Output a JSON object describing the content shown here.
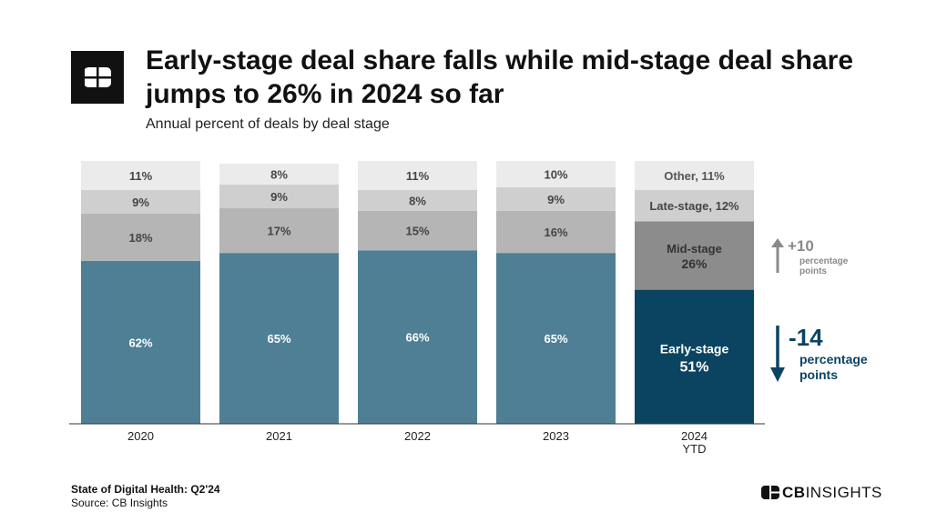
{
  "title": "Early-stage deal share falls while mid-stage deal share jumps to 26% in 2024 so far",
  "subtitle": "Annual percent of deals by deal stage",
  "colors": {
    "early": "#4e7f94",
    "early_highlight": "#0b4461",
    "mid": "#b5b5b5",
    "mid_highlight": "#8c8c8c",
    "late": "#cfcfcf",
    "other": "#ebebeb",
    "up_arrow": "#8a8a8a",
    "down_arrow": "#0b4461"
  },
  "chart_data": {
    "type": "bar",
    "stacked": true,
    "normalized": true,
    "title": "Early-stage deal share falls while mid-stage deal share jumps to 26% in 2024 so far",
    "subtitle": "Annual percent of deals by deal stage",
    "categories": [
      "2020",
      "2021",
      "2022",
      "2023",
      "2024 YTD"
    ],
    "series": [
      {
        "name": "Early-stage",
        "values": [
          62,
          65,
          66,
          65,
          51
        ]
      },
      {
        "name": "Mid-stage",
        "values": [
          18,
          17,
          15,
          16,
          26
        ]
      },
      {
        "name": "Late-stage",
        "values": [
          9,
          9,
          8,
          9,
          12
        ]
      },
      {
        "name": "Other",
        "values": [
          11,
          8,
          11,
          10,
          11
        ]
      }
    ],
    "ylim": [
      0,
      100
    ],
    "xlabel": "",
    "ylabel": "",
    "annotations": [
      {
        "series": "Mid-stage",
        "direction": "up",
        "value": "+10",
        "unit": "percentage points"
      },
      {
        "series": "Early-stage",
        "direction": "down",
        "value": "-14",
        "unit": "percentage points"
      }
    ]
  },
  "labels_2024": {
    "other": "Other, 11%",
    "late": "Late-stage, 12%",
    "mid_name": "Mid-stage",
    "mid_value": "26%",
    "early_name": "Early-stage",
    "early_value": "51%"
  },
  "year_labels": [
    [
      "2020"
    ],
    [
      "2021"
    ],
    [
      "2022"
    ],
    [
      "2023"
    ],
    [
      "2024",
      "YTD"
    ]
  ],
  "annotation_text": {
    "up_value": "+10",
    "up_line1": "percentage",
    "up_line2": "points",
    "down_value": "-14",
    "down_line1": "percentage",
    "down_line2": "points"
  },
  "footer": {
    "report": "State of Digital Health: Q2'24",
    "source": "Source: CB Insights"
  },
  "brand": {
    "bold": "CB",
    "light": "INSIGHTS"
  }
}
